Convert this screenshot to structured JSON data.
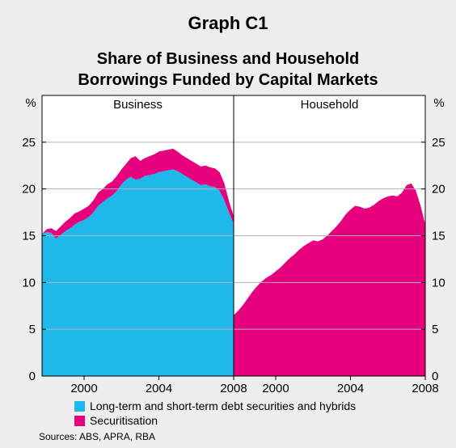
{
  "figure": {
    "graph_label": "Graph C1",
    "title_line1": "Share of Business and Household",
    "title_line2": "Borrowings Funded by Capital Markets",
    "source": "Sources: ABS, APRA, RBA"
  },
  "colors": {
    "debt_securities": "#1eb9ea",
    "securitisation": "#e6007e",
    "background": "#eeeeee",
    "plot_background": "#ffffff",
    "grid": "#b3b3b3"
  },
  "chart_data": [
    {
      "type": "area",
      "panel": "Business",
      "stacked": true,
      "y_unit_left": "%",
      "ylim": [
        0,
        30
      ],
      "yticks": [
        0,
        5,
        10,
        15,
        20,
        25
      ],
      "xlim": [
        1997.75,
        2008.0
      ],
      "xticks": [
        "2000",
        "2004",
        "2008"
      ],
      "grid": true,
      "x": [
        1997.75,
        1998.0,
        1998.25,
        1998.5,
        1998.75,
        1999.0,
        1999.25,
        1999.5,
        1999.75,
        2000.0,
        2000.25,
        2000.5,
        2000.75,
        2001.0,
        2001.25,
        2001.5,
        2001.75,
        2002.0,
        2002.25,
        2002.5,
        2002.75,
        2003.0,
        2003.25,
        2003.5,
        2003.75,
        2004.0,
        2004.25,
        2004.5,
        2004.75,
        2005.0,
        2005.25,
        2005.5,
        2005.75,
        2006.0,
        2006.25,
        2006.5,
        2006.75,
        2007.0,
        2007.25,
        2007.5,
        2007.75,
        2008.0
      ],
      "series": [
        {
          "name": "Long-term and short-term debt securities and hybrids",
          "values": [
            15.2,
            15.4,
            15.3,
            14.7,
            15.1,
            15.5,
            15.8,
            16.2,
            16.5,
            16.7,
            17.0,
            17.5,
            18.2,
            18.6,
            19.0,
            19.3,
            19.8,
            20.5,
            21.0,
            21.3,
            21.0,
            21.1,
            21.4,
            21.5,
            21.6,
            21.8,
            21.9,
            22.0,
            22.1,
            21.9,
            21.6,
            21.3,
            21.0,
            20.7,
            20.4,
            20.5,
            20.3,
            20.2,
            19.8,
            18.8,
            17.5,
            16.3
          ]
        },
        {
          "name": "Securitisation",
          "values": [
            0.0,
            0.3,
            0.5,
            0.8,
            0.9,
            1.0,
            1.1,
            1.2,
            1.1,
            1.2,
            1.2,
            1.3,
            1.4,
            1.4,
            1.5,
            1.5,
            1.6,
            1.6,
            1.7,
            2.0,
            2.5,
            1.9,
            1.9,
            2.0,
            2.1,
            2.2,
            2.2,
            2.2,
            2.2,
            2.1,
            2.0,
            2.0,
            2.0,
            2.0,
            2.0,
            2.0,
            2.0,
            2.0,
            2.0,
            1.8,
            1.2,
            0.8
          ]
        }
      ]
    },
    {
      "type": "area",
      "panel": "Household",
      "stacked": true,
      "y_unit_right": "%",
      "ylim": [
        0,
        30
      ],
      "yticks": [
        0,
        5,
        10,
        15,
        20,
        25
      ],
      "xlim": [
        1997.75,
        2008.0
      ],
      "xticks": [
        "2000",
        "2004",
        "2008"
      ],
      "grid": true,
      "x": [
        1997.75,
        1998.0,
        1998.25,
        1998.5,
        1998.75,
        1999.0,
        1999.25,
        1999.5,
        1999.75,
        2000.0,
        2000.25,
        2000.5,
        2000.75,
        2001.0,
        2001.25,
        2001.5,
        2001.75,
        2002.0,
        2002.25,
        2002.5,
        2002.75,
        2003.0,
        2003.25,
        2003.5,
        2003.75,
        2004.0,
        2004.25,
        2004.5,
        2004.75,
        2005.0,
        2005.25,
        2005.5,
        2005.75,
        2006.0,
        2006.25,
        2006.5,
        2006.75,
        2007.0,
        2007.25,
        2007.5,
        2007.75,
        2008.0
      ],
      "series": [
        {
          "name": "Securitisation",
          "values": [
            6.5,
            7.0,
            7.6,
            8.3,
            9.0,
            9.6,
            10.1,
            10.5,
            10.8,
            11.2,
            11.6,
            12.1,
            12.6,
            13.0,
            13.5,
            13.9,
            14.2,
            14.5,
            14.4,
            14.6,
            15.0,
            15.5,
            16.0,
            16.6,
            17.3,
            17.8,
            18.2,
            18.1,
            17.9,
            18.0,
            18.3,
            18.7,
            19.0,
            19.2,
            19.3,
            19.2,
            19.6,
            20.4,
            20.6,
            19.8,
            18.2,
            16.2
          ]
        }
      ]
    }
  ],
  "legend": [
    {
      "label": "Long-term and short-term debt securities and hybrids",
      "color": "#1eb9ea"
    },
    {
      "label": "Securitisation",
      "color": "#e6007e"
    }
  ]
}
